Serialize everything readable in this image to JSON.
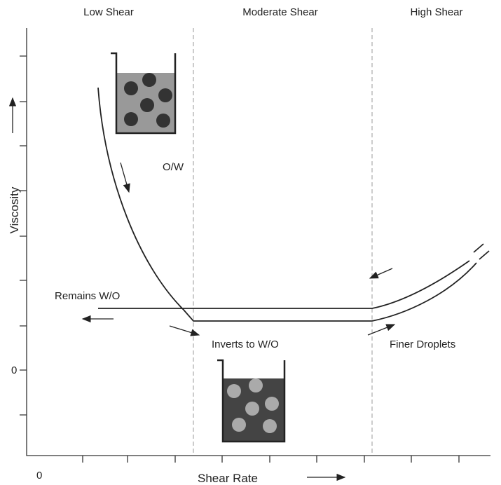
{
  "regions": [
    "Low Shear",
    "Moderate Shear",
    "High Shear"
  ],
  "axes": {
    "y_label": "Viscosity",
    "x_label": "Shear Rate",
    "y_origin": "0",
    "x_origin": "0"
  },
  "annotations": {
    "ow": "O/W",
    "remains": "Remains W/O",
    "inverts": "Inverts to W/O",
    "finer": "Finer Droplets"
  }
}
